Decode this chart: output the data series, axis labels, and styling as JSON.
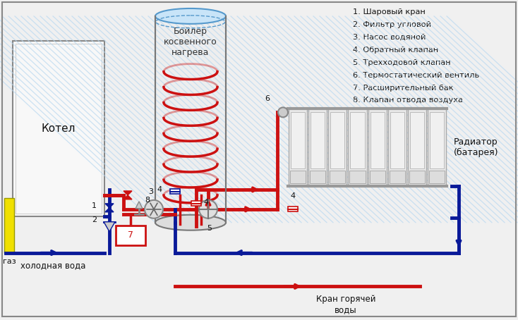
{
  "bg_color": "#f0f0f0",
  "legend_items": [
    "1. Шаровый кран",
    "2. Фильтр угловой",
    "3. Насос водяной",
    "4. Обратный клапан",
    "5. Трехходовой клапан",
    "6. Термостатический вентиль",
    "7. Расширительный бак",
    "8. Клапан отвода воздуха"
  ],
  "red": "#cc1111",
  "blue": "#1122cc",
  "dark_blue": "#0a1a99",
  "yellow": "#f0e000",
  "gray": "#888888",
  "light_blue": "#b8d8f0",
  "white": "#ffffff",
  "black": "#111111",
  "label_boiler": "Бойлер\nкосвенного\nнагрева",
  "label_kotel": "Котел",
  "label_gaz": "газ",
  "label_cold": "холодная вода",
  "label_hot": "Кран горячей\nводы",
  "label_radiator": "Радиатор\n(батарея)"
}
